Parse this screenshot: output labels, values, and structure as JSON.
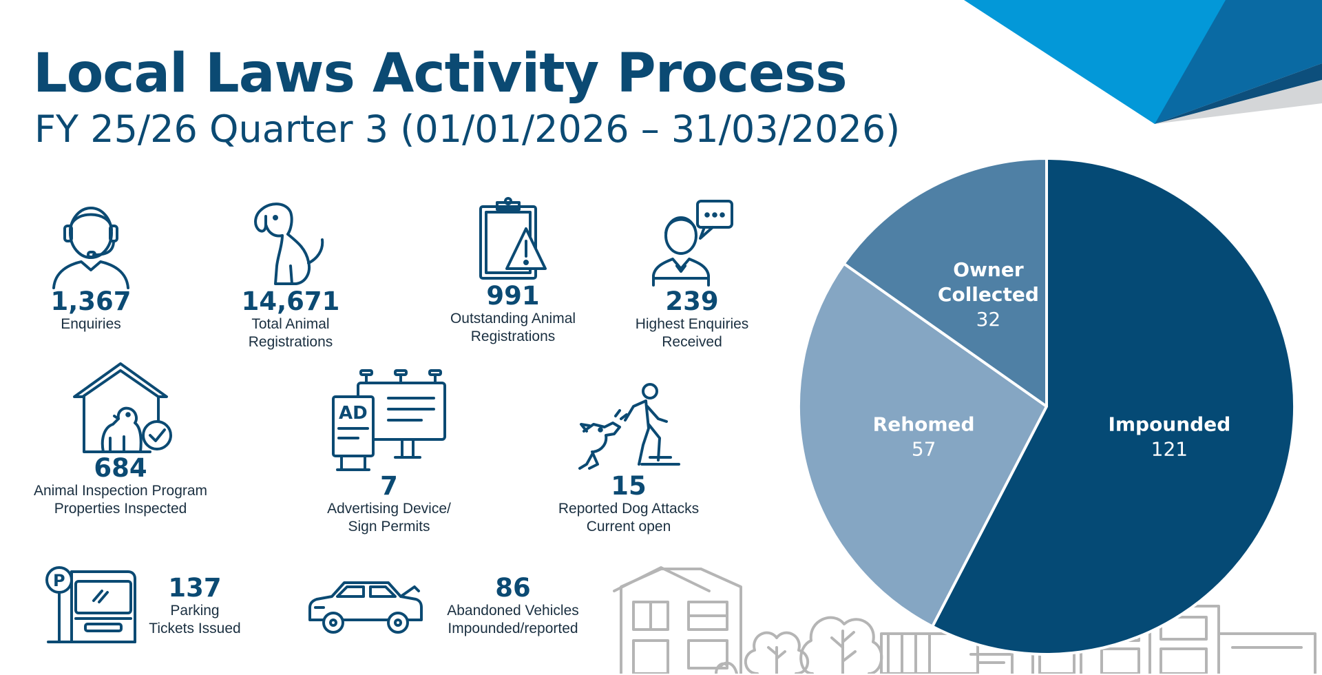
{
  "header": {
    "title": "Local Laws Activity Process",
    "subtitle": "FY 25/26 Quarter 3 (01/01/2026 – 31/03/2026)"
  },
  "stats": [
    {
      "icon": "headset-agent-icon",
      "value": "1,367",
      "label_lines": [
        "Enquiries"
      ]
    },
    {
      "icon": "dog-icon",
      "value": "14,671",
      "label_lines": [
        "Total Animal",
        "Registrations"
      ]
    },
    {
      "icon": "clipboard-warning-icon",
      "value": "991",
      "label_lines": [
        "Outstanding Animal",
        "Registrations"
      ]
    },
    {
      "icon": "person-speech-bubble-icon",
      "value": "239",
      "label_lines": [
        "Highest Enquiries",
        "Received"
      ]
    },
    {
      "icon": "dog-house-check-icon",
      "value": "684",
      "label_lines": [
        "Animal Inspection Program",
        "Properties Inspected"
      ]
    },
    {
      "icon": "billboard-ad-icon",
      "value": "7",
      "label_lines": [
        "Advertising Device/",
        "Sign Permits"
      ]
    },
    {
      "icon": "dog-attack-icon",
      "value": "15",
      "label_lines": [
        "Reported Dog Attacks",
        "Current open"
      ]
    },
    {
      "icon": "parking-meter-icon",
      "value": "137",
      "label_lines": [
        "Parking",
        "Tickets Issued"
      ]
    },
    {
      "icon": "car-icon",
      "value": "86",
      "label_lines": [
        "Abandoned Vehicles",
        "Impounded/reported"
      ]
    }
  ],
  "colors": {
    "navy": "#0b4a73",
    "impounded": "#054a75",
    "rehomed": "#85a6c3",
    "owner_collected": "#4f80a5",
    "corner_light": "#0398d8",
    "corner_dark": "#0a6aa3",
    "skyline": "#b5b5b5"
  },
  "chart_data": {
    "type": "pie",
    "title": "",
    "slices": [
      {
        "label": "Impounded",
        "value": 121,
        "color": "#054a75"
      },
      {
        "label": "Rehomed",
        "value": 57,
        "color": "#85a6c3"
      },
      {
        "label": "Owner Collected",
        "value": 32,
        "color": "#4f80a5"
      }
    ]
  }
}
